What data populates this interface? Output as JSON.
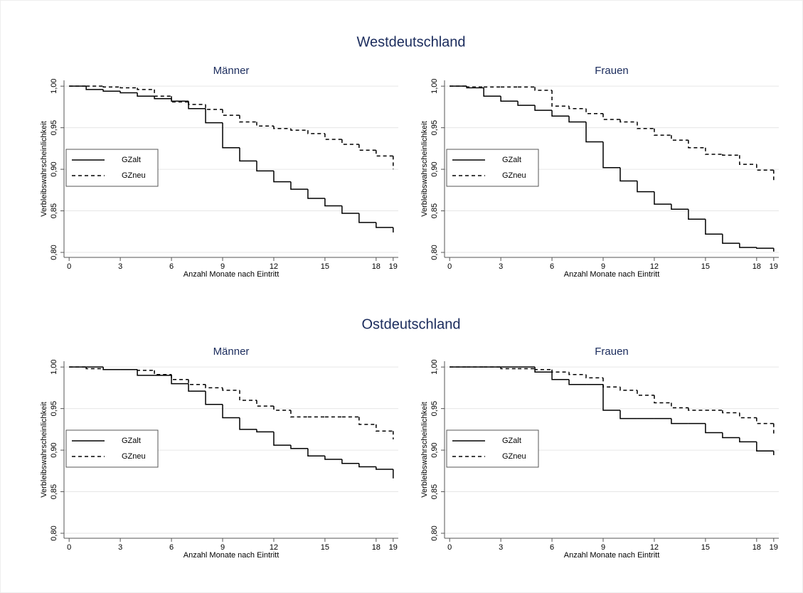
{
  "headings": [
    "Westdeutschland",
    "Ostdeutschland"
  ],
  "chart_data": [
    {
      "type": "step",
      "title": "Männer",
      "xlabel": "Anzahl Monate nach Eintritt",
      "ylabel": "Verbleibswahrscheinlichkeit",
      "x": [
        0,
        1,
        2,
        3,
        4,
        5,
        6,
        7,
        8,
        9,
        10,
        11,
        12,
        13,
        14,
        15,
        16,
        17,
        18,
        19
      ],
      "series": [
        {
          "name": "GZalt",
          "color": "#000000",
          "line_style": "solid",
          "values": [
            1.0,
            0.996,
            0.994,
            0.992,
            0.988,
            0.985,
            0.982,
            0.973,
            0.956,
            0.926,
            0.91,
            0.898,
            0.885,
            0.876,
            0.865,
            0.856,
            0.847,
            0.836,
            0.83,
            0.824
          ]
        },
        {
          "name": "GZneu",
          "color": "#000000",
          "line_style": "dashed",
          "values": [
            1.0,
            1.0,
            0.999,
            0.998,
            0.996,
            0.988,
            0.981,
            0.978,
            0.972,
            0.965,
            0.957,
            0.952,
            0.949,
            0.947,
            0.943,
            0.936,
            0.93,
            0.923,
            0.916,
            0.9
          ]
        }
      ],
      "xlim": [
        -0.3,
        19.3
      ],
      "xticks": [
        0,
        3,
        6,
        9,
        12,
        15,
        18,
        19
      ],
      "ylim": [
        0.794,
        1.007
      ],
      "yticks": [
        {
          "value": 0.8,
          "label": "0,80"
        },
        {
          "value": 0.85,
          "label": "0,85"
        },
        {
          "value": 0.9,
          "label": "0,90"
        },
        {
          "value": 0.95,
          "label": "0,95"
        },
        {
          "value": 1.0,
          "label": "1,00"
        }
      ],
      "grid": true,
      "legend": "left"
    },
    {
      "type": "step",
      "title": "Frauen",
      "xlabel": "Anzahl Monate nach Eintritt",
      "ylabel": "Verbleibswahrscheinlichkeit",
      "x": [
        0,
        1,
        2,
        3,
        4,
        5,
        6,
        7,
        8,
        9,
        10,
        11,
        12,
        13,
        14,
        15,
        16,
        17,
        18,
        19
      ],
      "series": [
        {
          "name": "GZalt",
          "color": "#000000",
          "line_style": "solid",
          "values": [
            1.0,
            0.998,
            0.988,
            0.982,
            0.977,
            0.971,
            0.964,
            0.957,
            0.933,
            0.902,
            0.886,
            0.873,
            0.858,
            0.852,
            0.84,
            0.822,
            0.811,
            0.806,
            0.805,
            0.801
          ]
        },
        {
          "name": "GZneu",
          "color": "#000000",
          "line_style": "dashed",
          "values": [
            1.0,
            0.999,
            0.999,
            0.999,
            0.999,
            0.995,
            0.976,
            0.973,
            0.967,
            0.96,
            0.957,
            0.949,
            0.941,
            0.935,
            0.926,
            0.918,
            0.917,
            0.906,
            0.899,
            0.886
          ]
        }
      ],
      "xlim": [
        -0.3,
        19.3
      ],
      "xticks": [
        0,
        3,
        6,
        9,
        12,
        15,
        18,
        19
      ],
      "ylim": [
        0.794,
        1.007
      ],
      "yticks": [
        {
          "value": 0.8,
          "label": "0,80"
        },
        {
          "value": 0.85,
          "label": "0,85"
        },
        {
          "value": 0.9,
          "label": "0,90"
        },
        {
          "value": 0.95,
          "label": "0,95"
        },
        {
          "value": 1.0,
          "label": "1,00"
        }
      ],
      "grid": true,
      "legend": "left"
    },
    {
      "type": "step",
      "title": "Männer",
      "xlabel": "Anzahl Monate nach Eintritt",
      "ylabel": "Verbleibswahrscheinlichkeit",
      "x": [
        0,
        1,
        2,
        3,
        4,
        5,
        6,
        7,
        8,
        9,
        10,
        11,
        12,
        13,
        14,
        15,
        16,
        17,
        18,
        19
      ],
      "series": [
        {
          "name": "GZalt",
          "color": "#000000",
          "line_style": "solid",
          "values": [
            1.0,
            1.0,
            0.997,
            0.997,
            0.99,
            0.99,
            0.98,
            0.971,
            0.955,
            0.939,
            0.925,
            0.922,
            0.906,
            0.902,
            0.893,
            0.889,
            0.884,
            0.88,
            0.877,
            0.866
          ]
        },
        {
          "name": "GZneu",
          "color": "#000000",
          "line_style": "dashed",
          "values": [
            1.0,
            0.998,
            0.997,
            0.997,
            0.996,
            0.991,
            0.985,
            0.979,
            0.975,
            0.972,
            0.96,
            0.953,
            0.948,
            0.94,
            0.94,
            0.94,
            0.94,
            0.931,
            0.923,
            0.913
          ]
        }
      ],
      "xlim": [
        -0.3,
        19.3
      ],
      "xticks": [
        0,
        3,
        6,
        9,
        12,
        15,
        18,
        19
      ],
      "ylim": [
        0.794,
        1.007
      ],
      "yticks": [
        {
          "value": 0.8,
          "label": "0,80"
        },
        {
          "value": 0.85,
          "label": "0,85"
        },
        {
          "value": 0.9,
          "label": "0,90"
        },
        {
          "value": 0.95,
          "label": "0,95"
        },
        {
          "value": 1.0,
          "label": "1,00"
        }
      ],
      "grid": true,
      "legend": "left"
    },
    {
      "type": "step",
      "title": "Frauen",
      "xlabel": "Anzahl Monate nach Eintritt",
      "ylabel": "Verbleibswahrscheinlichkeit",
      "x": [
        0,
        1,
        2,
        3,
        4,
        5,
        6,
        7,
        8,
        9,
        10,
        11,
        12,
        13,
        14,
        15,
        16,
        17,
        18,
        19
      ],
      "series": [
        {
          "name": "GZalt",
          "color": "#000000",
          "line_style": "solid",
          "values": [
            1.0,
            1.0,
            1.0,
            1.0,
            1.0,
            0.994,
            0.985,
            0.979,
            0.979,
            0.948,
            0.938,
            0.938,
            0.938,
            0.932,
            0.932,
            0.921,
            0.915,
            0.91,
            0.899,
            0.894
          ]
        },
        {
          "name": "GZneu",
          "color": "#000000",
          "line_style": "dashed",
          "values": [
            1.0,
            1.0,
            1.0,
            0.998,
            0.998,
            0.997,
            0.994,
            0.991,
            0.987,
            0.976,
            0.972,
            0.966,
            0.957,
            0.951,
            0.948,
            0.948,
            0.945,
            0.939,
            0.932,
            0.919
          ]
        }
      ],
      "xlim": [
        -0.3,
        19.3
      ],
      "xticks": [
        0,
        3,
        6,
        9,
        12,
        15,
        18,
        19
      ],
      "ylim": [
        0.794,
        1.007
      ],
      "yticks": [
        {
          "value": 0.8,
          "label": "0,80"
        },
        {
          "value": 0.85,
          "label": "0,85"
        },
        {
          "value": 0.9,
          "label": "0,90"
        },
        {
          "value": 0.95,
          "label": "0,95"
        },
        {
          "value": 1.0,
          "label": "1,00"
        }
      ],
      "grid": true,
      "legend": "left"
    }
  ]
}
